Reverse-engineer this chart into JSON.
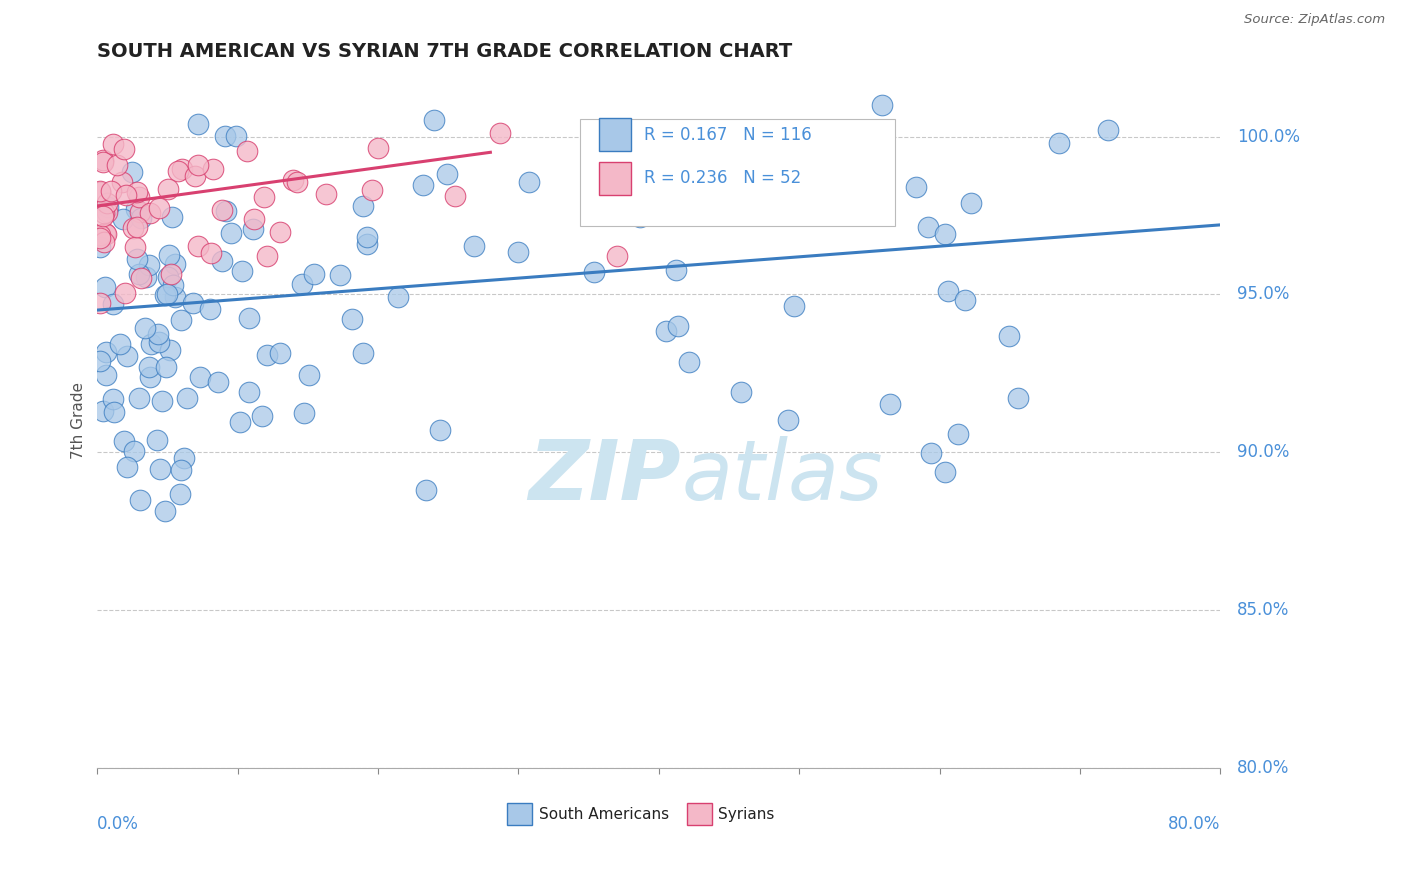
{
  "title": "SOUTH AMERICAN VS SYRIAN 7TH GRADE CORRELATION CHART",
  "source": "Source: ZipAtlas.com",
  "xmin": 0.0,
  "xmax": 80.0,
  "ymin": 80.0,
  "ymax": 102.0,
  "ylabel_ticks": [
    80.0,
    85.0,
    90.0,
    95.0,
    100.0
  ],
  "blue_color": "#a8c8e8",
  "pink_color": "#f4b8c8",
  "blue_line_color": "#3a7cc0",
  "pink_line_color": "#d84070",
  "legend_blue_label": "South Americans",
  "legend_pink_label": "Syrians",
  "R_blue": 0.167,
  "N_blue": 116,
  "R_pink": 0.236,
  "N_pink": 52,
  "grid_color": "#bbbbbb",
  "axis_color": "#4a90d9",
  "watermark_color": "#cce4f0",
  "blue_trend_x0": 0.0,
  "blue_trend_x1": 80.0,
  "blue_trend_y0": 94.5,
  "blue_trend_y1": 97.2,
  "pink_trend_x0": 0.0,
  "pink_trend_x1": 28.0,
  "pink_trend_y0": 97.8,
  "pink_trend_y1": 99.5
}
